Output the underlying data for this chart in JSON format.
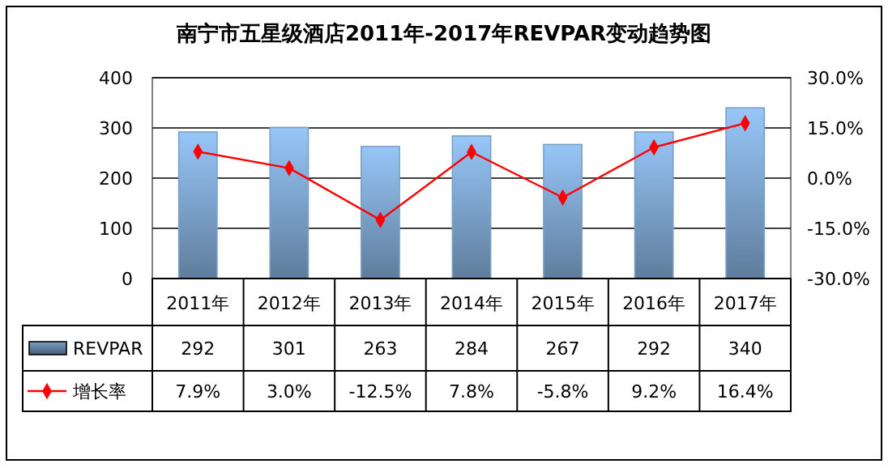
{
  "chart_data": {
    "type": "bar",
    "title": "南宁市五星级酒店2011年-2017年REVPAR变动趋势图",
    "categories": [
      "2011年",
      "2012年",
      "2013年",
      "2014年",
      "2015年",
      "2016年",
      "2017年"
    ],
    "series": [
      {
        "name": "REVPAR",
        "color": "#7aa0c8",
        "values": [
          292,
          301,
          263,
          284,
          267,
          292,
          340
        ],
        "value_labels": [
          "292",
          "301",
          "263",
          "284",
          "267",
          "292",
          "340"
        ]
      },
      {
        "name": "增长率",
        "type": "line",
        "axis": "y2",
        "color": "#ff0000",
        "marker": "diamond",
        "values": [
          7.9,
          3.0,
          -12.5,
          7.8,
          -5.8,
          9.2,
          16.4
        ],
        "value_labels": [
          "7.9%",
          "3.0%",
          "-12.5%",
          "7.8%",
          "-5.8%",
          "9.2%",
          "16.4%"
        ]
      }
    ],
    "ylim": [
      0,
      400
    ],
    "yticks": [
      0,
      100,
      200,
      300,
      400
    ],
    "y2lim": [
      -30,
      30
    ],
    "y2ticks": [
      {
        "value": -30,
        "label": "-30.0%"
      },
      {
        "value": -15,
        "label": "-15.0%"
      },
      {
        "value": 0,
        "label": "0.0%"
      },
      {
        "value": 15,
        "label": "15.0%"
      },
      {
        "value": 30,
        "label": "30.0%"
      }
    ],
    "grid": "y",
    "legend": "bottom"
  }
}
